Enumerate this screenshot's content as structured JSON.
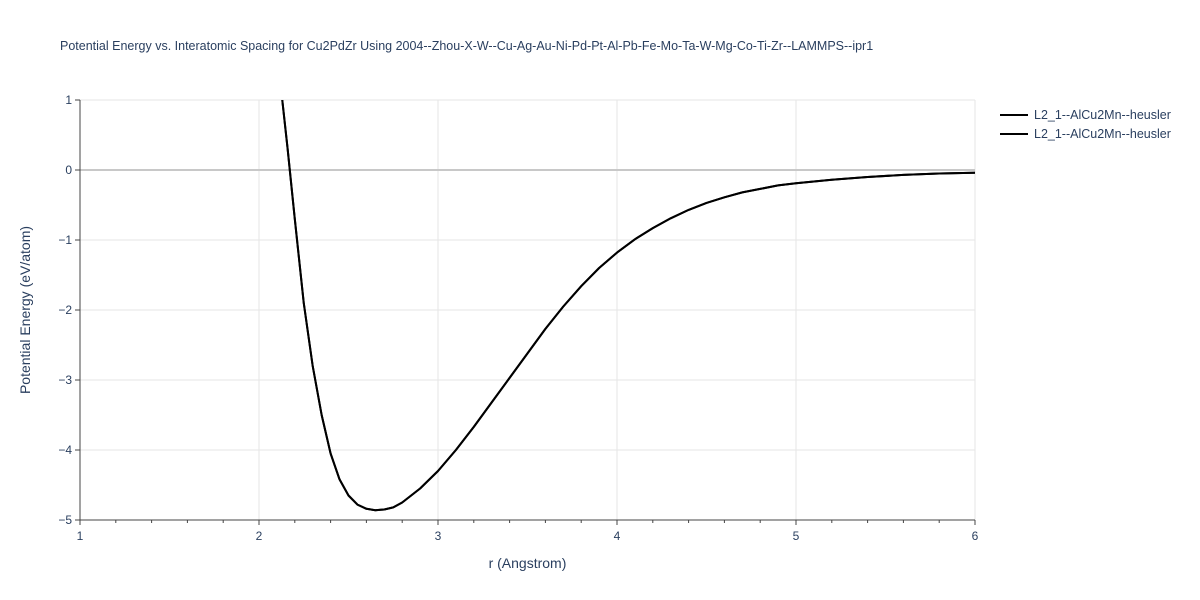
{
  "chart_data": {
    "type": "line",
    "title": "Potential Energy vs. Interatomic Spacing for Cu2PdZr Using 2004--Zhou-X-W--Cu-Ag-Au-Ni-Pd-Pt-Al-Pb-Fe-Mo-Ta-W-Mg-Co-Ti-Zr--LAMMPS--ipr1",
    "xlabel": "r (Angstrom)",
    "ylabel": "Potential Energy (eV/atom)",
    "xlim": [
      1,
      6
    ],
    "ylim": [
      -5,
      1
    ],
    "x_ticks": [
      "1",
      "2",
      "3",
      "4",
      "5",
      "6"
    ],
    "y_ticks": [
      "1",
      "0",
      "−1",
      "−2",
      "−3",
      "−4",
      "−5"
    ],
    "grid": true,
    "legend_position": "top-right",
    "series": [
      {
        "name": "L2_1--AlCu2Mn--heusler",
        "color": "#000000",
        "x": [
          2.13,
          2.16,
          2.2,
          2.25,
          2.3,
          2.35,
          2.4,
          2.45,
          2.5,
          2.55,
          2.6,
          2.65,
          2.7,
          2.75,
          2.8,
          2.9,
          3.0,
          3.1,
          3.2,
          3.3,
          3.4,
          3.5,
          3.6,
          3.7,
          3.8,
          3.9,
          4.0,
          4.1,
          4.2,
          4.3,
          4.4,
          4.5,
          4.6,
          4.7,
          4.8,
          4.9,
          5.0,
          5.2,
          5.4,
          5.6,
          5.8,
          6.0
        ],
        "y": [
          1.0,
          0.3,
          -0.7,
          -1.9,
          -2.8,
          -3.5,
          -4.05,
          -4.42,
          -4.65,
          -4.78,
          -4.84,
          -4.86,
          -4.85,
          -4.82,
          -4.75,
          -4.55,
          -4.3,
          -4.0,
          -3.67,
          -3.32,
          -2.97,
          -2.62,
          -2.27,
          -1.95,
          -1.66,
          -1.4,
          -1.18,
          -0.99,
          -0.83,
          -0.69,
          -0.57,
          -0.47,
          -0.39,
          -0.32,
          -0.27,
          -0.22,
          -0.19,
          -0.14,
          -0.1,
          -0.07,
          -0.05,
          -0.04
        ]
      },
      {
        "name": "L2_1--AlCu2Mn--heusler",
        "color": "#000000",
        "x": [
          2.13,
          2.16,
          2.2,
          2.25,
          2.3,
          2.35,
          2.4,
          2.45,
          2.5,
          2.55,
          2.6,
          2.65,
          2.7,
          2.75,
          2.8,
          2.9,
          3.0,
          3.1,
          3.2,
          3.3,
          3.4,
          3.5,
          3.6,
          3.7,
          3.8,
          3.9,
          4.0,
          4.1,
          4.2,
          4.3,
          4.4,
          4.5,
          4.6,
          4.7,
          4.8,
          4.9,
          5.0,
          5.2,
          5.4,
          5.6,
          5.8,
          6.0
        ],
        "y": [
          1.0,
          0.3,
          -0.7,
          -1.9,
          -2.8,
          -3.5,
          -4.05,
          -4.42,
          -4.65,
          -4.78,
          -4.84,
          -4.86,
          -4.85,
          -4.82,
          -4.75,
          -4.55,
          -4.3,
          -4.0,
          -3.67,
          -3.32,
          -2.97,
          -2.62,
          -2.27,
          -1.95,
          -1.66,
          -1.4,
          -1.18,
          -0.99,
          -0.83,
          -0.69,
          -0.57,
          -0.47,
          -0.39,
          -0.32,
          -0.27,
          -0.22,
          -0.19,
          -0.14,
          -0.1,
          -0.07,
          -0.05,
          -0.04
        ]
      }
    ]
  }
}
